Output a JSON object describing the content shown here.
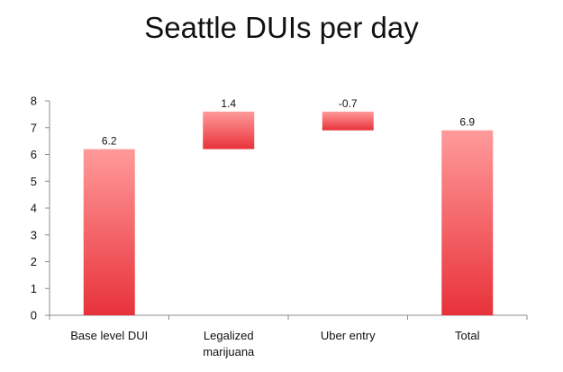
{
  "chart_data": {
    "type": "bar",
    "subtype": "waterfall",
    "title": "Seattle DUIs per day",
    "xlabel": "",
    "ylabel": "",
    "ylim": [
      0,
      8
    ],
    "yticks": [
      "0",
      "1",
      "2",
      "3",
      "4",
      "5",
      "6",
      "7",
      "8"
    ],
    "grid": false,
    "legend": "none",
    "bar_color_top": "#ff9a9a",
    "bar_color_bottom": "#e8323a",
    "categories": [
      [
        "Base level DUI"
      ],
      [
        "Legalized",
        "marijuana"
      ],
      [
        "Uber entry"
      ],
      [
        "Total"
      ]
    ],
    "bars": [
      {
        "label": "6.2",
        "start": 0,
        "end": 6.2
      },
      {
        "label": "1.4",
        "start": 6.2,
        "end": 7.6
      },
      {
        "label": "-0.7",
        "start": 7.6,
        "end": 6.9
      },
      {
        "label": "6.9",
        "start": 0,
        "end": 6.9
      }
    ]
  }
}
